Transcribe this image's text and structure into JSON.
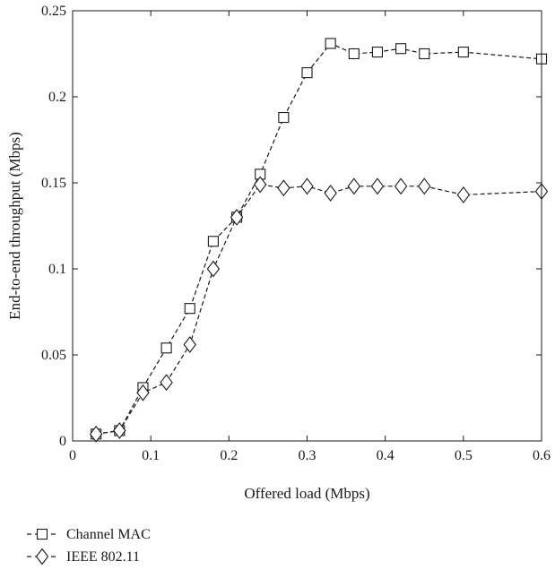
{
  "chart_data": {
    "type": "line",
    "xlabel": "Offered load (Mbps)",
    "ylabel": "End-to-end throughput (Mbps)",
    "xlim": [
      0,
      0.6
    ],
    "ylim": [
      0,
      0.25
    ],
    "x_ticks": [
      "0",
      "0.1",
      "0.2",
      "0.3",
      "0.4",
      "0.5",
      "0.6"
    ],
    "y_ticks": [
      "0",
      "0.05",
      "0.1",
      "0.15",
      "0.2",
      "0.25"
    ],
    "grid": false,
    "legend_position": "bottom-left, below plot",
    "series": [
      {
        "name": "Channel MAC",
        "marker": "square",
        "line_style": "dashed",
        "x": [
          0.03,
          0.06,
          0.09,
          0.12,
          0.15,
          0.18,
          0.21,
          0.24,
          0.27,
          0.3,
          0.33,
          0.36,
          0.39,
          0.42,
          0.45,
          0.5,
          0.6
        ],
        "y": [
          0.004,
          0.006,
          0.031,
          0.054,
          0.077,
          0.116,
          0.13,
          0.155,
          0.188,
          0.214,
          0.231,
          0.225,
          0.226,
          0.228,
          0.225,
          0.226,
          0.222
        ]
      },
      {
        "name": "IEEE 802.11",
        "marker": "diamond",
        "line_style": "dashed",
        "x": [
          0.03,
          0.06,
          0.09,
          0.12,
          0.15,
          0.18,
          0.21,
          0.24,
          0.27,
          0.3,
          0.33,
          0.36,
          0.39,
          0.42,
          0.45,
          0.5,
          0.6
        ],
        "y": [
          0.004,
          0.006,
          0.028,
          0.034,
          0.056,
          0.1,
          0.13,
          0.149,
          0.147,
          0.148,
          0.144,
          0.148,
          0.148,
          0.148,
          0.148,
          0.143,
          0.145
        ]
      }
    ],
    "colors": {
      "line": "#1a1a1a",
      "background": "#ffffff"
    }
  }
}
